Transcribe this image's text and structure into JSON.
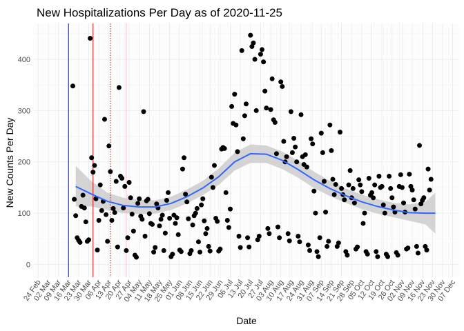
{
  "chart_data": {
    "type": "scatter",
    "title": "New Hospitalizations Per Day as of 2020-11-25",
    "xlabel": "Date",
    "ylabel": "New Counts Per Day",
    "x_range": [
      "2020-02-21",
      "2020-12-11"
    ],
    "ylim": [
      -25,
      470
    ],
    "y_ticks": [
      0,
      100,
      200,
      300,
      400
    ],
    "grid": true,
    "x_tick_labels": [
      {
        "date": "2020-02-24",
        "label": "24 Feb"
      },
      {
        "date": "2020-03-02",
        "label": "02 Mar"
      },
      {
        "date": "2020-03-09",
        "label": "09 Mar"
      },
      {
        "date": "2020-03-16",
        "label": "16 Mar"
      },
      {
        "date": "2020-03-23",
        "label": "23 Mar"
      },
      {
        "date": "2020-03-30",
        "label": "30 Mar"
      },
      {
        "date": "2020-04-06",
        "label": "06 Apr"
      },
      {
        "date": "2020-04-13",
        "label": "13 Apr"
      },
      {
        "date": "2020-04-20",
        "label": "20 Apr"
      },
      {
        "date": "2020-04-27",
        "label": "27 Apr"
      },
      {
        "date": "2020-05-04",
        "label": "04 May"
      },
      {
        "date": "2020-05-11",
        "label": "11 May"
      },
      {
        "date": "2020-05-18",
        "label": "18 May"
      },
      {
        "date": "2020-05-25",
        "label": "25 May"
      },
      {
        "date": "2020-06-01",
        "label": "01 Jun"
      },
      {
        "date": "2020-06-08",
        "label": "08 Jun"
      },
      {
        "date": "2020-06-15",
        "label": "15 Jun"
      },
      {
        "date": "2020-06-22",
        "label": "22 Jun"
      },
      {
        "date": "2020-06-29",
        "label": "29 Jun"
      },
      {
        "date": "2020-07-06",
        "label": "06 Jul"
      },
      {
        "date": "2020-07-13",
        "label": "13 Jul"
      },
      {
        "date": "2020-07-20",
        "label": "20 Jul"
      },
      {
        "date": "2020-07-27",
        "label": "27 Jul"
      },
      {
        "date": "2020-08-03",
        "label": "03 Aug"
      },
      {
        "date": "2020-08-10",
        "label": "10 Aug"
      },
      {
        "date": "2020-08-17",
        "label": "17 Aug"
      },
      {
        "date": "2020-08-24",
        "label": "24 Aug"
      },
      {
        "date": "2020-08-31",
        "label": "31 Aug"
      },
      {
        "date": "2020-09-07",
        "label": "07 Sep"
      },
      {
        "date": "2020-09-14",
        "label": "14 Sep"
      },
      {
        "date": "2020-09-21",
        "label": "21 Sep"
      },
      {
        "date": "2020-09-28",
        "label": "28 Sep"
      },
      {
        "date": "2020-10-05",
        "label": "05 Oct"
      },
      {
        "date": "2020-10-12",
        "label": "12 Oct"
      },
      {
        "date": "2020-10-19",
        "label": "19 Oct"
      },
      {
        "date": "2020-10-26",
        "label": "26 Oct"
      },
      {
        "date": "2020-11-02",
        "label": "02 Nov"
      },
      {
        "date": "2020-11-09",
        "label": "09 Nov"
      },
      {
        "date": "2020-11-16",
        "label": "16 Nov"
      },
      {
        "date": "2020-11-23",
        "label": "23 Nov"
      },
      {
        "date": "2020-11-30",
        "label": "30 Nov"
      },
      {
        "date": "2020-12-07",
        "label": "07 Dec"
      }
    ],
    "vlines": [
      {
        "date": "2020-03-16",
        "color": "#0000ff",
        "style": "solid"
      },
      {
        "date": "2020-04-02",
        "color": "#cc0000",
        "style": "solid"
      },
      {
        "date": "2020-04-14",
        "color": "#cc0000",
        "style": "dotted"
      },
      {
        "date": "2020-04-25",
        "color": "#ffb6c1",
        "style": "solid"
      }
    ],
    "smooth": {
      "color": "#3366ff",
      "band_color": "#cccccc",
      "points": [
        {
          "x": "2020-03-21",
          "y": 152,
          "lo": 113,
          "hi": 192
        },
        {
          "x": "2020-04-01",
          "y": 137,
          "lo": 113,
          "hi": 162
        },
        {
          "x": "2020-04-12",
          "y": 123,
          "lo": 106,
          "hi": 140
        },
        {
          "x": "2020-04-23",
          "y": 115,
          "lo": 100,
          "hi": 130
        },
        {
          "x": "2020-05-04",
          "y": 112,
          "lo": 98,
          "hi": 126
        },
        {
          "x": "2020-05-15",
          "y": 112,
          "lo": 99,
          "hi": 125
        },
        {
          "x": "2020-05-26",
          "y": 119,
          "lo": 106,
          "hi": 132
        },
        {
          "x": "2020-06-06",
          "y": 132,
          "lo": 119,
          "hi": 146
        },
        {
          "x": "2020-06-17",
          "y": 149,
          "lo": 135,
          "hi": 163
        },
        {
          "x": "2020-06-28",
          "y": 171,
          "lo": 155,
          "hi": 187
        },
        {
          "x": "2020-07-09",
          "y": 200,
          "lo": 183,
          "hi": 218
        },
        {
          "x": "2020-07-20",
          "y": 216,
          "lo": 198,
          "hi": 234
        },
        {
          "x": "2020-07-31",
          "y": 215,
          "lo": 198,
          "hi": 232
        },
        {
          "x": "2020-08-11",
          "y": 203,
          "lo": 186,
          "hi": 220
        },
        {
          "x": "2020-08-22",
          "y": 185,
          "lo": 169,
          "hi": 202
        },
        {
          "x": "2020-09-02",
          "y": 165,
          "lo": 149,
          "hi": 181
        },
        {
          "x": "2020-09-13",
          "y": 148,
          "lo": 133,
          "hi": 163
        },
        {
          "x": "2020-09-24",
          "y": 134,
          "lo": 120,
          "hi": 148
        },
        {
          "x": "2020-10-05",
          "y": 122,
          "lo": 108,
          "hi": 136
        },
        {
          "x": "2020-10-16",
          "y": 113,
          "lo": 99,
          "hi": 127
        },
        {
          "x": "2020-10-27",
          "y": 106,
          "lo": 92,
          "hi": 120
        },
        {
          "x": "2020-11-07",
          "y": 101,
          "lo": 85,
          "hi": 117
        },
        {
          "x": "2020-11-18",
          "y": 100,
          "lo": 78,
          "hi": 122
        },
        {
          "x": "2020-11-25",
          "y": 100,
          "lo": 60,
          "hi": 140
        }
      ]
    },
    "points": [
      [
        "2020-03-19",
        348
      ],
      [
        "2020-03-20",
        127
      ],
      [
        "2020-03-21",
        95
      ],
      [
        "2020-03-22",
        52
      ],
      [
        "2020-03-23",
        47
      ],
      [
        "2020-03-24",
        43
      ],
      [
        "2020-03-25",
        113
      ],
      [
        "2020-03-26",
        135
      ],
      [
        "2020-03-27",
        110
      ],
      [
        "2020-03-28",
        83
      ],
      [
        "2020-03-29",
        45
      ],
      [
        "2020-03-30",
        48
      ],
      [
        "2020-03-31",
        441
      ],
      [
        "2020-04-01",
        208
      ],
      [
        "2020-04-02",
        180
      ],
      [
        "2020-04-03",
        193
      ],
      [
        "2020-04-04",
        128
      ],
      [
        "2020-04-05",
        28
      ],
      [
        "2020-04-06",
        86
      ],
      [
        "2020-04-07",
        155
      ],
      [
        "2020-04-08",
        105
      ],
      [
        "2020-04-09",
        123
      ],
      [
        "2020-04-10",
        283
      ],
      [
        "2020-04-11",
        97
      ],
      [
        "2020-04-12",
        45
      ],
      [
        "2020-04-13",
        231
      ],
      [
        "2020-04-14",
        181
      ],
      [
        "2020-04-15",
        86
      ],
      [
        "2020-04-16",
        109
      ],
      [
        "2020-04-17",
        101
      ],
      [
        "2020-04-18",
        162
      ],
      [
        "2020-04-19",
        34
      ],
      [
        "2020-04-20",
        345
      ],
      [
        "2020-04-21",
        172
      ],
      [
        "2020-04-22",
        168
      ],
      [
        "2020-04-23",
        110
      ],
      [
        "2020-04-24",
        152
      ],
      [
        "2020-04-25",
        27
      ],
      [
        "2020-04-26",
        52
      ],
      [
        "2020-04-27",
        160
      ],
      [
        "2020-04-28",
        130
      ],
      [
        "2020-04-29",
        98
      ],
      [
        "2020-04-30",
        65
      ],
      [
        "2020-05-01",
        18
      ],
      [
        "2020-05-02",
        14
      ],
      [
        "2020-05-03",
        119
      ],
      [
        "2020-05-04",
        128
      ],
      [
        "2020-05-05",
        94
      ],
      [
        "2020-05-06",
        88
      ],
      [
        "2020-05-07",
        298
      ],
      [
        "2020-05-08",
        55
      ],
      [
        "2020-05-09",
        124
      ],
      [
        "2020-05-10",
        127
      ],
      [
        "2020-05-11",
        99
      ],
      [
        "2020-05-12",
        80
      ],
      [
        "2020-05-13",
        78
      ],
      [
        "2020-05-14",
        24
      ],
      [
        "2020-05-15",
        33
      ],
      [
        "2020-05-16",
        118
      ],
      [
        "2020-05-17",
        110
      ],
      [
        "2020-05-18",
        75
      ],
      [
        "2020-05-19",
        88
      ],
      [
        "2020-05-20",
        96
      ],
      [
        "2020-05-21",
        27
      ],
      [
        "2020-05-22",
        61
      ],
      [
        "2020-05-23",
        125
      ],
      [
        "2020-05-24",
        140
      ],
      [
        "2020-05-25",
        90
      ],
      [
        "2020-05-26",
        15
      ],
      [
        "2020-05-27",
        20
      ],
      [
        "2020-05-28",
        96
      ],
      [
        "2020-05-29",
        80
      ],
      [
        "2020-05-30",
        91
      ],
      [
        "2020-05-31",
        58
      ],
      [
        "2020-06-01",
        28
      ],
      [
        "2020-06-02",
        25
      ],
      [
        "2020-06-03",
        186
      ],
      [
        "2020-06-04",
        208
      ],
      [
        "2020-06-05",
        137
      ],
      [
        "2020-06-06",
        122
      ],
      [
        "2020-06-07",
        89
      ],
      [
        "2020-06-08",
        21
      ],
      [
        "2020-06-09",
        27
      ],
      [
        "2020-06-10",
        77
      ],
      [
        "2020-06-11",
        95
      ],
      [
        "2020-06-12",
        100
      ],
      [
        "2020-06-13",
        109
      ],
      [
        "2020-06-14",
        44
      ],
      [
        "2020-06-15",
        24
      ],
      [
        "2020-06-16",
        116
      ],
      [
        "2020-06-17",
        128
      ],
      [
        "2020-06-18",
        85
      ],
      [
        "2020-06-19",
        60
      ],
      [
        "2020-06-20",
        70
      ],
      [
        "2020-06-21",
        35
      ],
      [
        "2020-06-22",
        26
      ],
      [
        "2020-06-23",
        170
      ],
      [
        "2020-06-24",
        150
      ],
      [
        "2020-06-25",
        193
      ],
      [
        "2020-06-26",
        90
      ],
      [
        "2020-06-27",
        84
      ],
      [
        "2020-06-28",
        26
      ],
      [
        "2020-06-29",
        30
      ],
      [
        "2020-06-30",
        225
      ],
      [
        "2020-07-01",
        228
      ],
      [
        "2020-07-02",
        226
      ],
      [
        "2020-07-03",
        140
      ],
      [
        "2020-07-04",
        86
      ],
      [
        "2020-07-05",
        72
      ],
      [
        "2020-07-06",
        108
      ],
      [
        "2020-07-07",
        308
      ],
      [
        "2020-07-08",
        275
      ],
      [
        "2020-07-09",
        332
      ],
      [
        "2020-07-10",
        272
      ],
      [
        "2020-07-11",
        220
      ],
      [
        "2020-07-12",
        55
      ],
      [
        "2020-07-13",
        33
      ],
      [
        "2020-07-14",
        417
      ],
      [
        "2020-07-15",
        245
      ],
      [
        "2020-07-16",
        290
      ],
      [
        "2020-07-17",
        313
      ],
      [
        "2020-07-18",
        52
      ],
      [
        "2020-07-19",
        34
      ],
      [
        "2020-07-20",
        447
      ],
      [
        "2020-07-21",
        425
      ],
      [
        "2020-07-22",
        432
      ],
      [
        "2020-07-23",
        400
      ],
      [
        "2020-07-24",
        300
      ],
      [
        "2020-07-25",
        48
      ],
      [
        "2020-07-26",
        55
      ],
      [
        "2020-07-27",
        410
      ],
      [
        "2020-07-28",
        419
      ],
      [
        "2020-07-29",
        395
      ],
      [
        "2020-07-30",
        338
      ],
      [
        "2020-07-31",
        305
      ],
      [
        "2020-08-01",
        70
      ],
      [
        "2020-08-02",
        60
      ],
      [
        "2020-08-03",
        302
      ],
      [
        "2020-08-04",
        362
      ],
      [
        "2020-08-05",
        282
      ],
      [
        "2020-08-06",
        277
      ],
      [
        "2020-08-07",
        216
      ],
      [
        "2020-08-08",
        73
      ],
      [
        "2020-08-09",
        52
      ],
      [
        "2020-08-10",
        356
      ],
      [
        "2020-08-11",
        347
      ],
      [
        "2020-08-12",
        240
      ],
      [
        "2020-08-13",
        200
      ],
      [
        "2020-08-14",
        210
      ],
      [
        "2020-08-15",
        60
      ],
      [
        "2020-08-16",
        46
      ],
      [
        "2020-08-17",
        298
      ],
      [
        "2020-08-18",
        218
      ],
      [
        "2020-08-19",
        246
      ],
      [
        "2020-08-20",
        229
      ],
      [
        "2020-08-21",
        200
      ],
      [
        "2020-08-22",
        55
      ],
      [
        "2020-08-23",
        44
      ],
      [
        "2020-08-24",
        292
      ],
      [
        "2020-08-25",
        210
      ],
      [
        "2020-08-26",
        195
      ],
      [
        "2020-08-27",
        214
      ],
      [
        "2020-08-28",
        190
      ],
      [
        "2020-08-29",
        38
      ],
      [
        "2020-08-30",
        27
      ],
      [
        "2020-08-31",
        245
      ],
      [
        "2020-09-01",
        235
      ],
      [
        "2020-09-02",
        143
      ],
      [
        "2020-09-03",
        100
      ],
      [
        "2020-09-04",
        25
      ],
      [
        "2020-09-05",
        15
      ],
      [
        "2020-09-06",
        52
      ],
      [
        "2020-09-07",
        256
      ],
      [
        "2020-09-08",
        218
      ],
      [
        "2020-09-09",
        162
      ],
      [
        "2020-09-10",
        102
      ],
      [
        "2020-09-11",
        35
      ],
      [
        "2020-09-12",
        45
      ],
      [
        "2020-09-13",
        272
      ],
      [
        "2020-09-14",
        222
      ],
      [
        "2020-09-15",
        166
      ],
      [
        "2020-09-16",
        136
      ],
      [
        "2020-09-17",
        156
      ],
      [
        "2020-09-18",
        35
      ],
      [
        "2020-09-19",
        42
      ],
      [
        "2020-09-20",
        258
      ],
      [
        "2020-09-21",
        148
      ],
      [
        "2020-09-22",
        136
      ],
      [
        "2020-09-23",
        126
      ],
      [
        "2020-09-24",
        25
      ],
      [
        "2020-09-25",
        18
      ],
      [
        "2020-09-26",
        155
      ],
      [
        "2020-09-27",
        183
      ],
      [
        "2020-09-28",
        130
      ],
      [
        "2020-09-29",
        148
      ],
      [
        "2020-09-30",
        120
      ],
      [
        "2020-10-01",
        30
      ],
      [
        "2020-10-02",
        34
      ],
      [
        "2020-10-03",
        165
      ],
      [
        "2020-10-04",
        155
      ],
      [
        "2020-10-05",
        142
      ],
      [
        "2020-10-06",
        80
      ],
      [
        "2020-10-07",
        100
      ],
      [
        "2020-10-08",
        25
      ],
      [
        "2020-10-09",
        20
      ],
      [
        "2020-10-10",
        168
      ],
      [
        "2020-10-11",
        135
      ],
      [
        "2020-10-12",
        140
      ],
      [
        "2020-10-13",
        130
      ],
      [
        "2020-10-14",
        155
      ],
      [
        "2020-10-15",
        25
      ],
      [
        "2020-10-16",
        15
      ],
      [
        "2020-10-17",
        172
      ],
      [
        "2020-10-18",
        150
      ],
      [
        "2020-10-19",
        152
      ],
      [
        "2020-10-20",
        116
      ],
      [
        "2020-10-21",
        100
      ],
      [
        "2020-10-22",
        20
      ],
      [
        "2020-10-23",
        15
      ],
      [
        "2020-10-24",
        172
      ],
      [
        "2020-10-25",
        148
      ],
      [
        "2020-10-26",
        130
      ],
      [
        "2020-10-27",
        112
      ],
      [
        "2020-10-28",
        102
      ],
      [
        "2020-10-29",
        23
      ],
      [
        "2020-10-30",
        18
      ],
      [
        "2020-10-31",
        152
      ],
      [
        "2020-11-01",
        175
      ],
      [
        "2020-11-02",
        150
      ],
      [
        "2020-11-03",
        120
      ],
      [
        "2020-11-04",
        102
      ],
      [
        "2020-11-05",
        30
      ],
      [
        "2020-11-06",
        32
      ],
      [
        "2020-11-07",
        176
      ],
      [
        "2020-11-08",
        152
      ],
      [
        "2020-11-09",
        145
      ],
      [
        "2020-11-10",
        126
      ],
      [
        "2020-11-11",
        108
      ],
      [
        "2020-11-12",
        35
      ],
      [
        "2020-11-13",
        22
      ],
      [
        "2020-11-14",
        232
      ],
      [
        "2020-11-15",
        118
      ],
      [
        "2020-11-16",
        125
      ],
      [
        "2020-11-17",
        130
      ],
      [
        "2020-11-18",
        35
      ],
      [
        "2020-11-19",
        28
      ],
      [
        "2020-11-20",
        186
      ],
      [
        "2020-11-21",
        145
      ],
      [
        "2020-11-22",
        166
      ]
    ]
  }
}
